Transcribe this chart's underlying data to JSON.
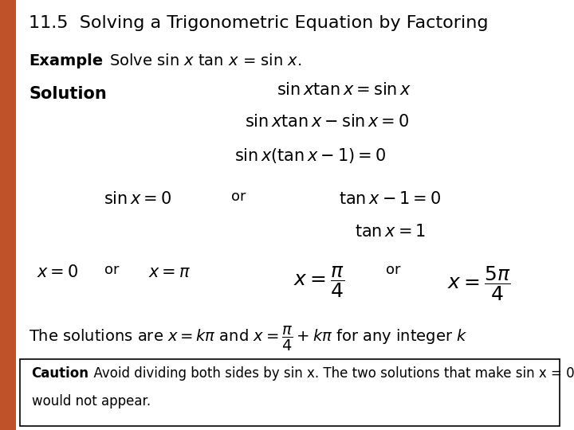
{
  "title": "11.5  Solving a Trigonometric Equation by Factoring",
  "example_label": "Example",
  "solution_label": "Solution",
  "caution_bold": "Caution",
  "caution_line1": "  Avoid dividing both sides by sin x. The two solutions that make sin x = 0",
  "caution_line2": "would not appear.",
  "bg_color": "#ffffff",
  "left_bar_color": "#c0522a",
  "title_fontsize": 16,
  "body_fontsize": 13,
  "math_fontsize": 15
}
